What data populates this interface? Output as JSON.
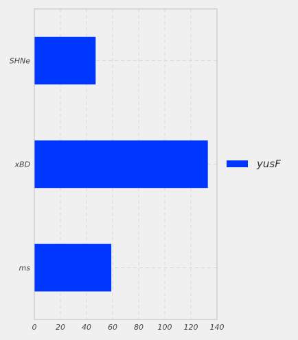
{
  "chart_data": {
    "type": "bar",
    "orientation": "horizontal",
    "categories": [
      "SHNe",
      "xBD",
      "ms"
    ],
    "series": [
      {
        "name": "yusF",
        "values": [
          47,
          133,
          59
        ],
        "color": "#0037ff"
      }
    ],
    "xlim": [
      0,
      140
    ],
    "xticks": [
      0,
      20,
      40,
      60,
      80,
      100,
      120,
      140
    ],
    "xtick_labels": [
      "0",
      "20",
      "40",
      "60",
      "80",
      "100",
      "120",
      "140"
    ],
    "title": "",
    "xlabel": "",
    "ylabel": "",
    "grid": true,
    "legend_position": "right"
  },
  "colors": {
    "background": "#f0f0f0",
    "plot_background": "#f0f0f0",
    "grid": "#d9d9d9",
    "spine": "#bfbfbf"
  }
}
